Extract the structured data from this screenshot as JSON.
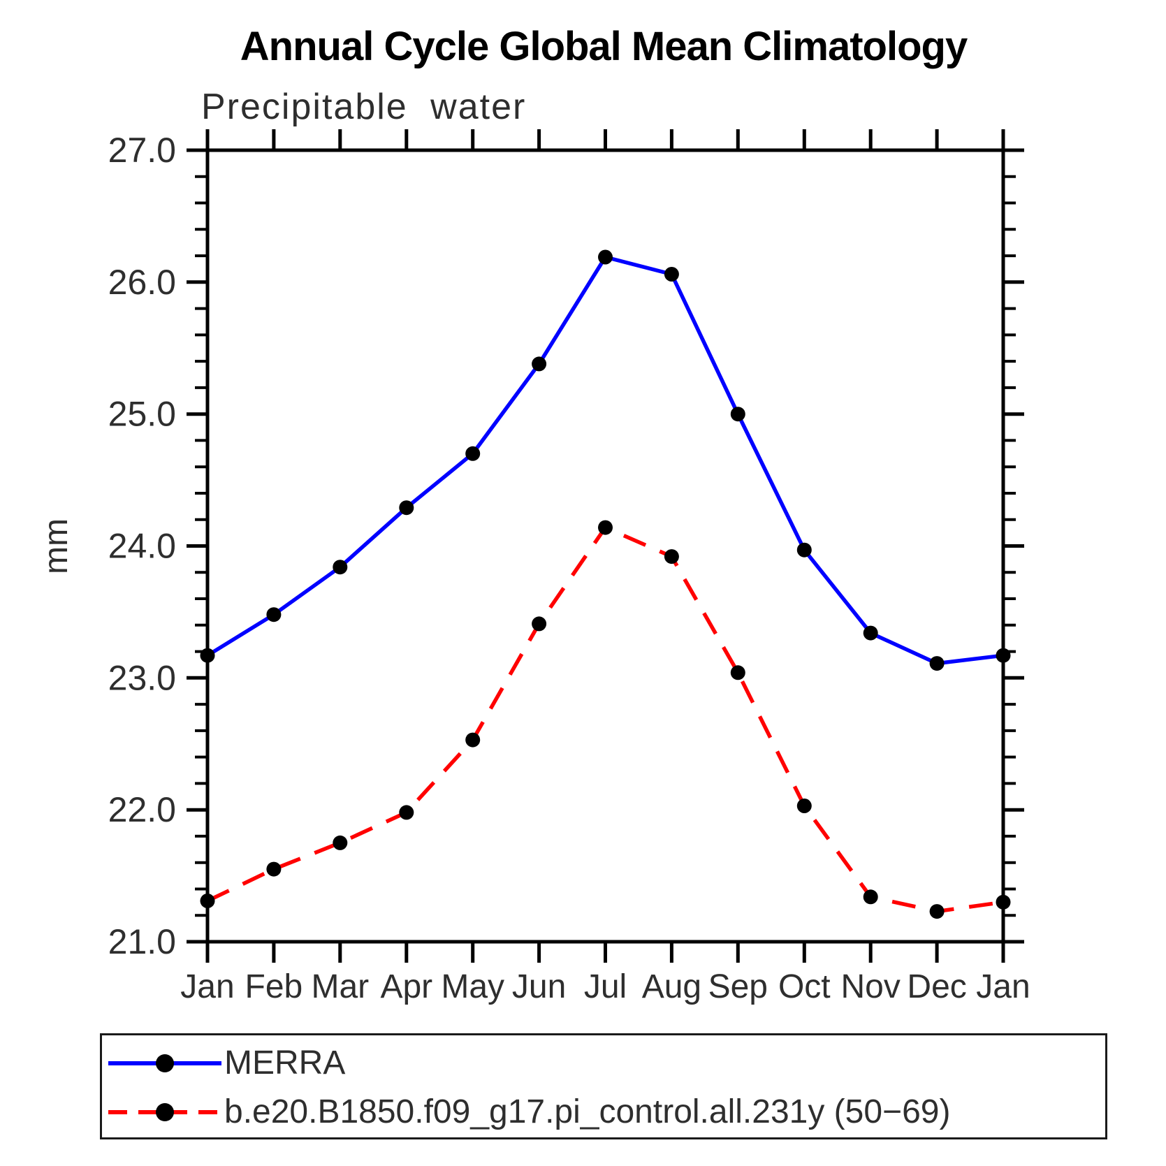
{
  "chart_data": {
    "type": "line",
    "title": "Annual Cycle Global Mean Climatology",
    "subtitle": "Precipitable water",
    "ylabel": "mm",
    "xlabel": "",
    "x_tick_labels": [
      "Jan",
      "Feb",
      "Mar",
      "Apr",
      "May",
      "Jun",
      "Jul",
      "Aug",
      "Sep",
      "Oct",
      "Nov",
      "Dec",
      "Jan"
    ],
    "ylim": [
      21.0,
      27.0
    ],
    "y_tick_values": [
      27.0,
      26.0,
      25.0,
      24.0,
      23.0,
      22.0,
      21.0
    ],
    "y_tick_labels": [
      "27.0",
      "26.0",
      "25.0",
      "24.0",
      "23.0",
      "22.0",
      "21.0"
    ],
    "y_minor_step": 0.2,
    "grid": false,
    "legend_position": "bottom-left",
    "series": [
      {
        "name": "MERRA",
        "color": "#0000ff",
        "style": "solid",
        "marker": "circle",
        "marker_color": "#000000",
        "values": [
          23.17,
          23.48,
          23.84,
          24.29,
          24.7,
          25.38,
          26.19,
          26.06,
          25.0,
          23.97,
          23.34,
          23.11,
          23.17
        ]
      },
      {
        "name": "b.e20.B1850.f09_g17.pi_control.all.231y (50−69)",
        "color": "#ff0000",
        "style": "dashed",
        "marker": "circle",
        "marker_color": "#000000",
        "values": [
          21.31,
          21.55,
          21.75,
          21.98,
          22.53,
          23.41,
          24.14,
          23.92,
          23.04,
          22.03,
          21.34,
          21.23,
          21.3
        ]
      }
    ]
  }
}
